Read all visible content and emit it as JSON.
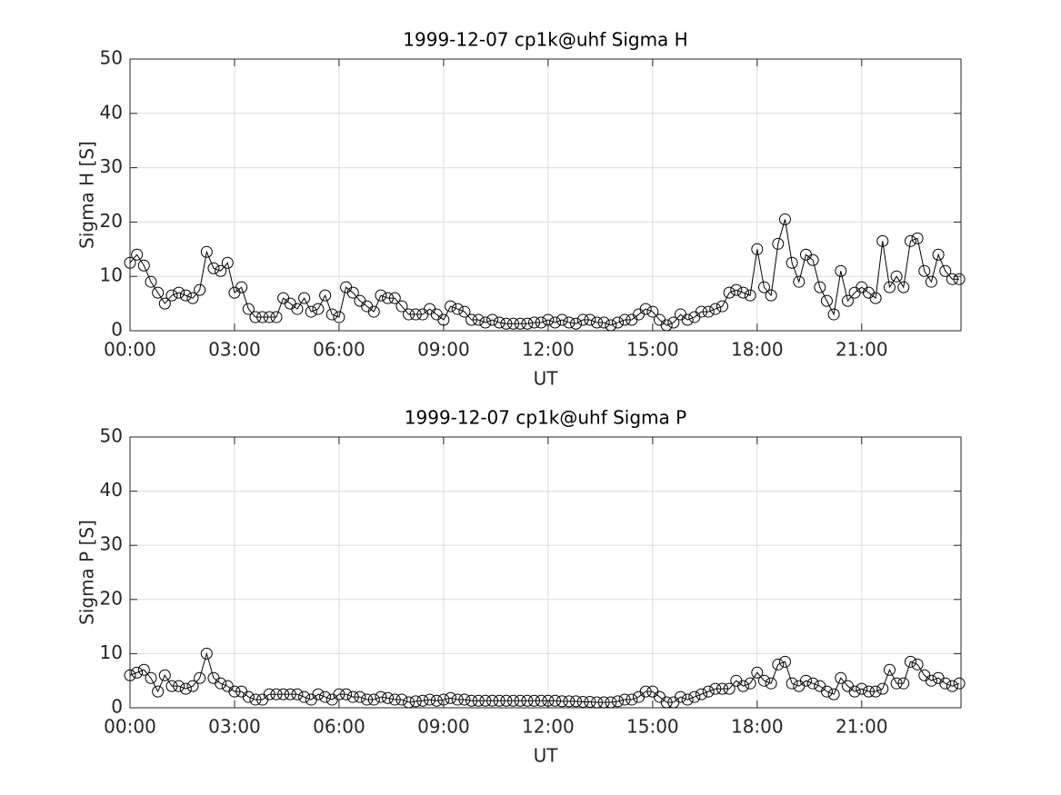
{
  "chart_data": [
    {
      "type": "line",
      "title": "1999-12-07  cp1k@uhf Sigma H",
      "xlabel": "UT",
      "ylabel": "Sigma H [S]",
      "marker": "circle",
      "color": "#000000",
      "grid": true,
      "x": [
        0,
        0.2,
        0.4,
        0.6,
        0.8,
        1,
        1.2,
        1.4,
        1.6,
        1.8,
        2,
        2.2,
        2.4,
        2.6,
        2.8,
        3,
        3.2,
        3.4,
        3.6,
        3.8,
        4,
        4.2,
        4.4,
        4.6,
        4.8,
        5,
        5.2,
        5.4,
        5.6,
        5.8,
        6,
        6.2,
        6.4,
        6.6,
        6.8,
        7,
        7.2,
        7.4,
        7.6,
        7.8,
        8,
        8.2,
        8.4,
        8.6,
        8.8,
        9,
        9.2,
        9.4,
        9.6,
        9.8,
        10,
        10.2,
        10.4,
        10.6,
        10.8,
        11,
        11.2,
        11.4,
        11.6,
        11.8,
        12,
        12.2,
        12.4,
        12.6,
        12.8,
        13,
        13.2,
        13.4,
        13.6,
        13.8,
        14,
        14.2,
        14.4,
        14.6,
        14.8,
        15,
        15.2,
        15.4,
        15.6,
        15.8,
        16,
        16.2,
        16.4,
        16.6,
        16.8,
        17,
        17.2,
        17.4,
        17.6,
        17.8,
        18,
        18.2,
        18.4,
        18.6,
        18.8,
        19,
        19.2,
        19.4,
        19.6,
        19.8,
        20,
        20.2,
        20.4,
        20.6,
        20.8,
        21,
        21.2,
        21.4,
        21.6,
        21.8,
        22,
        22.2,
        22.4,
        22.6,
        22.8,
        23,
        23.2,
        23.4,
        23.6,
        23.8
      ],
      "values": [
        12.5,
        14,
        12,
        9,
        7,
        5,
        6.5,
        7,
        6.5,
        6,
        7.5,
        14.5,
        11.5,
        11,
        12.5,
        7,
        8,
        4,
        2.5,
        2.5,
        2.5,
        2.5,
        6,
        5,
        4,
        6,
        3.5,
        4,
        6.5,
        3,
        2.5,
        8,
        7,
        5.5,
        4.5,
        3.5,
        6.5,
        6,
        6,
        4.5,
        3,
        3,
        3,
        4,
        3,
        2,
        4.5,
        4,
        3.5,
        2,
        2,
        1.5,
        2,
        1.5,
        1.3,
        1.3,
        1.3,
        1.3,
        1.5,
        1.5,
        2,
        1.5,
        2,
        1.5,
        1.3,
        2,
        2,
        1.5,
        1.5,
        1,
        1.5,
        2,
        2,
        3,
        4,
        3.5,
        2,
        1,
        1.5,
        3,
        2,
        2.5,
        3.5,
        3.5,
        4,
        4.5,
        7,
        7.5,
        7,
        6.5,
        15,
        8,
        6.5,
        16,
        20.5,
        12.5,
        9,
        14,
        13,
        8,
        5.5,
        3,
        11,
        5.5,
        7,
        8,
        7,
        6,
        16.5,
        8,
        10,
        8,
        16.5,
        17,
        11,
        9,
        14,
        11,
        9.5,
        9.5
      ],
      "xlim": [
        0,
        23.85
      ],
      "xticks": [
        {
          "value": 0,
          "label": "00:00"
        },
        {
          "value": 3,
          "label": "03:00"
        },
        {
          "value": 6,
          "label": "06:00"
        },
        {
          "value": 9,
          "label": "09:00"
        },
        {
          "value": 12,
          "label": "12:00"
        },
        {
          "value": 15,
          "label": "15:00"
        },
        {
          "value": 18,
          "label": "18:00"
        },
        {
          "value": 21,
          "label": "21:00"
        }
      ],
      "ylim": [
        0,
        50
      ],
      "yticks": [
        0,
        10,
        20,
        30,
        40,
        50
      ]
    },
    {
      "type": "line",
      "title": "1999-12-07  cp1k@uhf Sigma P",
      "xlabel": "UT",
      "ylabel": "Sigma P [S]",
      "marker": "circle",
      "color": "#000000",
      "grid": true,
      "x": [
        0,
        0.2,
        0.4,
        0.6,
        0.8,
        1,
        1.2,
        1.4,
        1.6,
        1.8,
        2,
        2.2,
        2.4,
        2.6,
        2.8,
        3,
        3.2,
        3.4,
        3.6,
        3.8,
        4,
        4.2,
        4.4,
        4.6,
        4.8,
        5,
        5.2,
        5.4,
        5.6,
        5.8,
        6,
        6.2,
        6.4,
        6.6,
        6.8,
        7,
        7.2,
        7.4,
        7.6,
        7.8,
        8,
        8.2,
        8.4,
        8.6,
        8.8,
        9,
        9.2,
        9.4,
        9.6,
        9.8,
        10,
        10.2,
        10.4,
        10.6,
        10.8,
        11,
        11.2,
        11.4,
        11.6,
        11.8,
        12,
        12.2,
        12.4,
        12.6,
        12.8,
        13,
        13.2,
        13.4,
        13.6,
        13.8,
        14,
        14.2,
        14.4,
        14.6,
        14.8,
        15,
        15.2,
        15.4,
        15.6,
        15.8,
        16,
        16.2,
        16.4,
        16.6,
        16.8,
        17,
        17.2,
        17.4,
        17.6,
        17.8,
        18,
        18.2,
        18.4,
        18.6,
        18.8,
        19,
        19.2,
        19.4,
        19.6,
        19.8,
        20,
        20.2,
        20.4,
        20.6,
        20.8,
        21,
        21.2,
        21.4,
        21.6,
        21.8,
        22,
        22.2,
        22.4,
        22.6,
        22.8,
        23,
        23.2,
        23.4,
        23.6,
        23.8
      ],
      "values": [
        6,
        6.5,
        7,
        5.5,
        3,
        6,
        4,
        4,
        3.5,
        4,
        5.5,
        10,
        5.5,
        4.5,
        4,
        3,
        3,
        2,
        1.5,
        1.5,
        2.5,
        2.5,
        2.5,
        2.5,
        2.5,
        2,
        1.5,
        2.5,
        2,
        1.5,
        2.5,
        2.5,
        2,
        2,
        1.5,
        1.5,
        2,
        1.8,
        1.5,
        1.5,
        1,
        1.2,
        1.3,
        1.5,
        1.3,
        1.5,
        1.8,
        1.5,
        1.5,
        1.3,
        1.3,
        1.3,
        1.3,
        1.3,
        1.3,
        1.3,
        1.3,
        1.3,
        1.3,
        1.3,
        1.3,
        1.3,
        1.2,
        1.2,
        1.2,
        1.1,
        1.1,
        1,
        1,
        1,
        1.2,
        1.5,
        1.5,
        2,
        3,
        3,
        2,
        1,
        1,
        2,
        1.5,
        2,
        2.5,
        3,
        3.5,
        3.5,
        3.5,
        5,
        4,
        4.5,
        6.5,
        5,
        4.5,
        8,
        8.5,
        4.5,
        4,
        5,
        4.5,
        4,
        3,
        2.5,
        5.5,
        4,
        3,
        3.5,
        3,
        3,
        3.5,
        7,
        4.5,
        4.5,
        8.5,
        8,
        6,
        5,
        5.5,
        4.5,
        4,
        4.5
      ],
      "xlim": [
        0,
        23.85
      ],
      "xticks": [
        {
          "value": 0,
          "label": "00:00"
        },
        {
          "value": 3,
          "label": "03:00"
        },
        {
          "value": 6,
          "label": "06:00"
        },
        {
          "value": 9,
          "label": "09:00"
        },
        {
          "value": 12,
          "label": "12:00"
        },
        {
          "value": 15,
          "label": "15:00"
        },
        {
          "value": 18,
          "label": "18:00"
        },
        {
          "value": 21,
          "label": "21:00"
        }
      ],
      "ylim": [
        0,
        50
      ],
      "yticks": [
        0,
        10,
        20,
        30,
        40,
        50
      ]
    }
  ]
}
